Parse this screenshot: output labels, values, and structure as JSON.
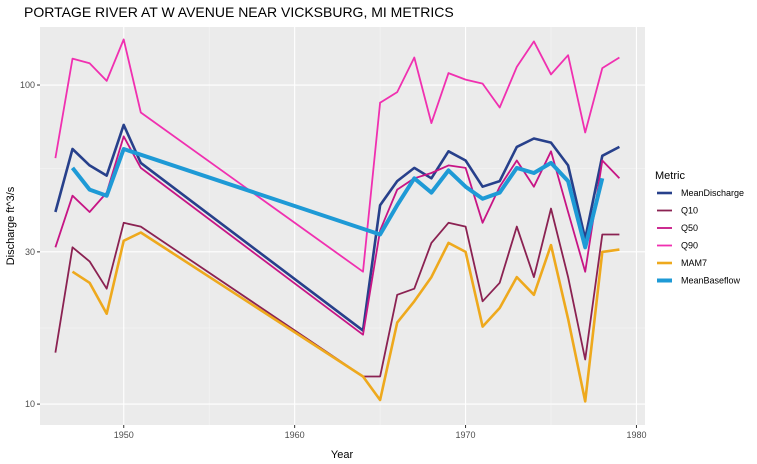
{
  "chart_data": {
    "type": "line",
    "title": "PORTAGE RIVER AT W AVENUE NEAR VICKSBURG, MI  METRICS",
    "xlabel": "Year",
    "ylabel": "Discharge ft^3/s",
    "y_scale": "log10",
    "xlim": [
      1945.1,
      1980.5
    ],
    "ylim": [
      8.6,
      152
    ],
    "x_ticks": [
      1950,
      1960,
      1970,
      1980
    ],
    "y_ticks": [
      10,
      30,
      100
    ],
    "grid": true,
    "legend": {
      "title": "Metric",
      "position": "right"
    },
    "series": [
      {
        "name": "MeanDischarge",
        "color": "#27408b",
        "x": [
          1946,
          1947,
          1948,
          1949,
          1950,
          1951,
          1964,
          1965,
          1966,
          1967,
          1968,
          1969,
          1970,
          1971,
          1972,
          1973,
          1974,
          1975,
          1976,
          1977,
          1978,
          1979
        ],
        "y": [
          40,
          63,
          56,
          52,
          75,
          57,
          17,
          42,
          50,
          55,
          51,
          62,
          58,
          48,
          50,
          64,
          68,
          66,
          56,
          33,
          60,
          64
        ]
      },
      {
        "name": "Q10",
        "color": "#8b2252",
        "x": [
          1946,
          1947,
          1948,
          1949,
          1950,
          1951,
          1964,
          1965,
          1966,
          1967,
          1968,
          1969,
          1970,
          1971,
          1972,
          1973,
          1974,
          1975,
          1976,
          1977,
          1978,
          1979
        ],
        "y": [
          14.5,
          31,
          28,
          23,
          37,
          36,
          12.2,
          12.2,
          22,
          23,
          32,
          37,
          36,
          21,
          24,
          36,
          25,
          41,
          25,
          13.8,
          34,
          34
        ]
      },
      {
        "name": "Q50",
        "color": "#c71585",
        "x": [
          1946,
          1947,
          1948,
          1949,
          1950,
          1951,
          1964,
          1965,
          1966,
          1967,
          1968,
          1969,
          1970,
          1971,
          1972,
          1973,
          1974,
          1975,
          1976,
          1977,
          1978,
          1979
        ],
        "y": [
          31,
          45,
          40,
          46,
          69,
          55,
          16.5,
          35,
          47,
          51,
          53,
          56,
          55,
          37,
          48,
          58,
          48,
          62,
          40,
          26,
          58,
          51
        ]
      },
      {
        "name": "Q90",
        "color": "#f030b0",
        "x": [
          1946,
          1947,
          1948,
          1949,
          1950,
          1951,
          1964,
          1965,
          1966,
          1967,
          1968,
          1969,
          1970,
          1971,
          1972,
          1973,
          1974,
          1975,
          1976,
          1977,
          1978,
          1979
        ],
        "y": [
          59,
          121,
          117,
          103,
          139,
          82,
          26,
          88,
          95,
          122,
          76,
          109,
          104,
          101,
          85,
          114,
          137,
          108,
          124,
          71,
          113,
          122
        ]
      },
      {
        "name": "MAM7",
        "color": "#eea91d",
        "x": [
          1947,
          1948,
          1949,
          1950,
          1951,
          1964,
          1965,
          1966,
          1967,
          1968,
          1969,
          1970,
          1971,
          1972,
          1973,
          1974,
          1975,
          1976,
          1977,
          1978,
          1979
        ],
        "y": [
          26,
          24,
          19.2,
          32.5,
          34.5,
          12.2,
          10.3,
          18,
          21,
          25,
          32,
          30,
          17.5,
          20,
          25,
          22,
          31.5,
          18.5,
          10.2,
          30,
          30.5
        ]
      },
      {
        "name": "MeanBaseflow",
        "color": "#1e9ad6",
        "x": [
          1947,
          1948,
          1949,
          1950,
          1965,
          1966,
          1967,
          1968,
          1969,
          1970,
          1971,
          1972,
          1973,
          1974,
          1975,
          1976,
          1977,
          1978
        ],
        "y": [
          55,
          47,
          45,
          63,
          34,
          42,
          51,
          46,
          54,
          48,
          44,
          46,
          55,
          53,
          57,
          50,
          31,
          51
        ]
      }
    ]
  }
}
